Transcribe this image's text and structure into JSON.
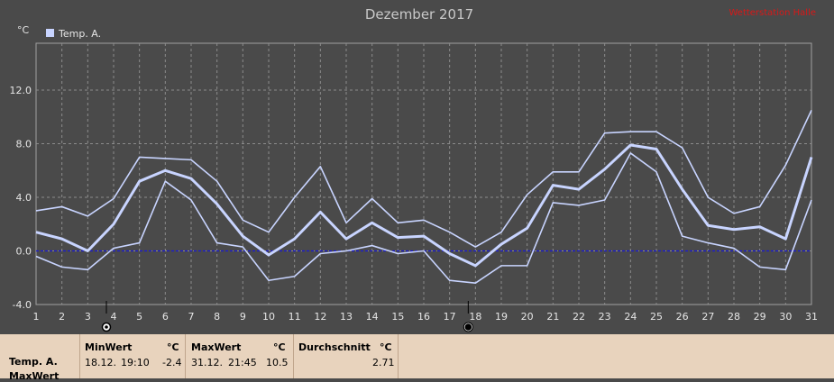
{
  "watermark": "Wetterstation Halle",
  "colors": {
    "background": "#4a4a4a",
    "plot": "#4a4a4a",
    "grid": "#8c8c8c",
    "axis": "#a0a0a0",
    "series": "#c8d4ff",
    "zero_line": "#1a1ad6",
    "watermark": "#d81818",
    "text": "#e6e6e6",
    "footer_bg": "#e8d3bd"
  },
  "icons": [
    "sun-icon",
    "moon-icon"
  ],
  "footer": {
    "row_labels": [
      "Temp. A.",
      "MaxWert"
    ],
    "min": {
      "label": "MinWert",
      "unit": "°C",
      "date": "18.12.",
      "time": "19:10",
      "value": "-2.4"
    },
    "max": {
      "label": "MaxWert",
      "unit": "°C",
      "date": "31.12.",
      "time": "21:45",
      "value": "10.5"
    },
    "avg": {
      "label": "Durchschnitt",
      "unit": "°C",
      "value": "2.71"
    }
  },
  "chart_data": {
    "type": "line",
    "title": "Dezember 2017",
    "ylabel": "°C",
    "xlabel": "",
    "x": [
      1,
      2,
      3,
      4,
      5,
      6,
      7,
      8,
      9,
      10,
      11,
      12,
      13,
      14,
      15,
      16,
      17,
      18,
      19,
      20,
      21,
      22,
      23,
      24,
      25,
      26,
      27,
      28,
      29,
      30,
      31
    ],
    "x_tick_labels": [
      "1",
      "2",
      "3",
      "4",
      "5",
      "6",
      "7",
      "8",
      "9",
      "10",
      "11",
      "12",
      "13",
      "14",
      "15",
      "16",
      "17",
      "18",
      "19",
      "20",
      "21",
      "22",
      "23",
      "24",
      "25",
      "26",
      "27",
      "28",
      "29",
      "30",
      "31"
    ],
    "y_tick_labels": [
      "12.0",
      "8.0",
      "4.0",
      "0.0",
      "-4.0"
    ],
    "y_ticks": [
      12,
      8,
      4,
      0,
      -4
    ],
    "ylim": [
      -4,
      15.5
    ],
    "xlim": [
      1,
      31
    ],
    "grid": true,
    "legend": {
      "position": "top-left",
      "entries": [
        "Temp. A."
      ]
    },
    "reference_line": 0,
    "markers": [
      {
        "x": 4,
        "icon": "sun-icon"
      },
      {
        "x": 18,
        "icon": "moon-icon"
      }
    ],
    "series": [
      {
        "name": "Temp. A.",
        "role": "max",
        "values": [
          3.0,
          3.3,
          2.6,
          3.9,
          7.0,
          6.9,
          6.8,
          5.2,
          2.3,
          1.4,
          4.0,
          6.3,
          2.1,
          3.9,
          2.1,
          2.3,
          1.4,
          0.3,
          1.4,
          4.2,
          5.9,
          5.9,
          8.8,
          8.9,
          8.9,
          7.7,
          4.0,
          2.8,
          3.3,
          6.4,
          10.5
        ]
      },
      {
        "name": "Temp. A.",
        "role": "mean",
        "values": [
          1.4,
          0.9,
          0.0,
          2.0,
          5.2,
          6.0,
          5.4,
          3.5,
          1.1,
          -0.3,
          0.9,
          2.9,
          0.9,
          2.1,
          1.0,
          1.1,
          -0.2,
          -1.1,
          0.5,
          1.7,
          4.9,
          4.6,
          6.1,
          7.9,
          7.6,
          4.6,
          1.9,
          1.6,
          1.8,
          0.9,
          7.0
        ]
      },
      {
        "name": "Temp. A.",
        "role": "min",
        "values": [
          -0.4,
          -1.2,
          -1.4,
          0.2,
          0.6,
          5.2,
          3.8,
          0.6,
          0.3,
          -2.2,
          -1.9,
          -0.2,
          0.0,
          0.4,
          -0.2,
          0.0,
          -2.2,
          -2.4,
          -1.1,
          -1.1,
          3.6,
          3.4,
          3.8,
          7.3,
          5.9,
          1.1,
          0.6,
          0.2,
          -1.2,
          -1.4,
          3.8
        ]
      }
    ]
  }
}
